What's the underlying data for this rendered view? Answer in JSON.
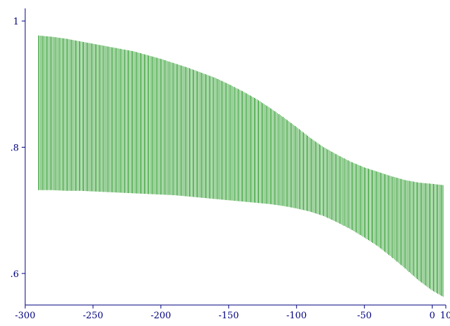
{
  "chart_data": {
    "type": "range-bar",
    "title": "",
    "xlabel": "",
    "ylabel": "",
    "xlim": [
      -300,
      10
    ],
    "ylim": [
      0.55,
      1.02
    ],
    "x_ticks": [
      -300,
      -250,
      -200,
      -150,
      -100,
      -50,
      0,
      10
    ],
    "x_tick_labels": [
      "-300",
      "-250",
      "-200",
      "-150",
      "-100",
      "-50",
      "0",
      "10"
    ],
    "y_ticks": [
      0.6,
      0.8,
      1.0
    ],
    "y_tick_labels": [
      ".6",
      ".8",
      "1"
    ],
    "grid": false,
    "bars_x_range": [
      -290,
      8
    ],
    "bar_step": 1,
    "upper": {
      "x": [
        -290,
        -280,
        -270,
        -260,
        -250,
        -240,
        -230,
        -220,
        -210,
        -200,
        -190,
        -180,
        -170,
        -160,
        -150,
        -140,
        -130,
        -120,
        -110,
        -100,
        -90,
        -80,
        -70,
        -60,
        -50,
        -40,
        -30,
        -20,
        -10,
        0,
        8
      ],
      "y": [
        0.977,
        0.975,
        0.972,
        0.968,
        0.964,
        0.96,
        0.956,
        0.952,
        0.946,
        0.94,
        0.933,
        0.926,
        0.918,
        0.91,
        0.9,
        0.889,
        0.877,
        0.863,
        0.848,
        0.832,
        0.815,
        0.8,
        0.788,
        0.777,
        0.768,
        0.761,
        0.754,
        0.748,
        0.744,
        0.742,
        0.74
      ]
    },
    "lower": {
      "x": [
        -290,
        -280,
        -270,
        -260,
        -250,
        -240,
        -230,
        -220,
        -210,
        -200,
        -190,
        -180,
        -170,
        -160,
        -150,
        -140,
        -130,
        -120,
        -110,
        -100,
        -90,
        -80,
        -70,
        -60,
        -50,
        -40,
        -30,
        -20,
        -10,
        0,
        8
      ],
      "y": [
        0.732,
        0.732,
        0.731,
        0.731,
        0.73,
        0.729,
        0.728,
        0.727,
        0.726,
        0.725,
        0.724,
        0.722,
        0.72,
        0.718,
        0.716,
        0.714,
        0.712,
        0.71,
        0.707,
        0.703,
        0.698,
        0.691,
        0.681,
        0.67,
        0.657,
        0.643,
        0.626,
        0.608,
        0.589,
        0.573,
        0.563
      ]
    },
    "colors": {
      "bars": "#008800",
      "axis": "#000080",
      "tick_label": "#000080"
    }
  }
}
